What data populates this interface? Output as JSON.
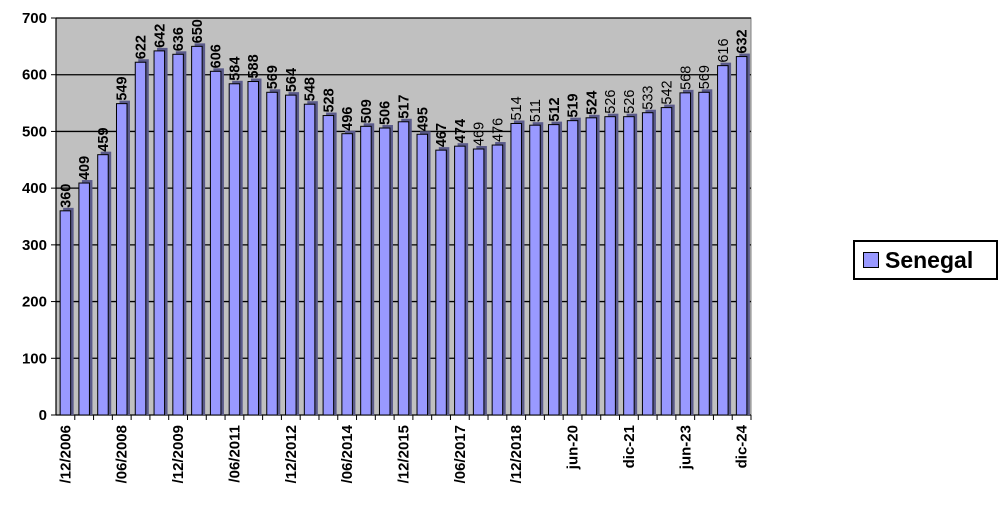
{
  "chart_data": {
    "type": "bar",
    "title": "",
    "xlabel": "",
    "ylabel": "",
    "ylim": [
      0,
      700
    ],
    "yticks": [
      0,
      100,
      200,
      300,
      400,
      500,
      600,
      700
    ],
    "grid": true,
    "legend_position": "right",
    "categories": [
      "/12/2006",
      "",
      "",
      "/06/2008",
      "",
      "",
      "/12/2009",
      "",
      "",
      "/06/2011",
      "",
      "",
      "/12/2012",
      "",
      "",
      "/06/2014",
      "",
      "",
      "/12/2015",
      "",
      "",
      "/06/2017",
      "",
      "",
      "/12/2018",
      "",
      "",
      "jun-20",
      "",
      "",
      "dic-21",
      "",
      "",
      "jun-23",
      "",
      "",
      "dic-24"
    ],
    "series": [
      {
        "name": "Senegal",
        "color": "#9999ff",
        "values": [
          360,
          409,
          459,
          549,
          622,
          642,
          636,
          650,
          606,
          584,
          588,
          569,
          564,
          548,
          528,
          496,
          509,
          506,
          517,
          495,
          467,
          474,
          469,
          476,
          514,
          511,
          512,
          519,
          524,
          526,
          526,
          533,
          542,
          568,
          569,
          616,
          632
        ],
        "label_bold": [
          true,
          true,
          true,
          true,
          true,
          true,
          true,
          true,
          true,
          true,
          true,
          true,
          true,
          true,
          true,
          true,
          true,
          true,
          true,
          true,
          true,
          true,
          false,
          false,
          false,
          false,
          true,
          true,
          true,
          false,
          false,
          false,
          false,
          false,
          false,
          false,
          true
        ]
      }
    ]
  },
  "legend": {
    "label": "Senegal"
  }
}
